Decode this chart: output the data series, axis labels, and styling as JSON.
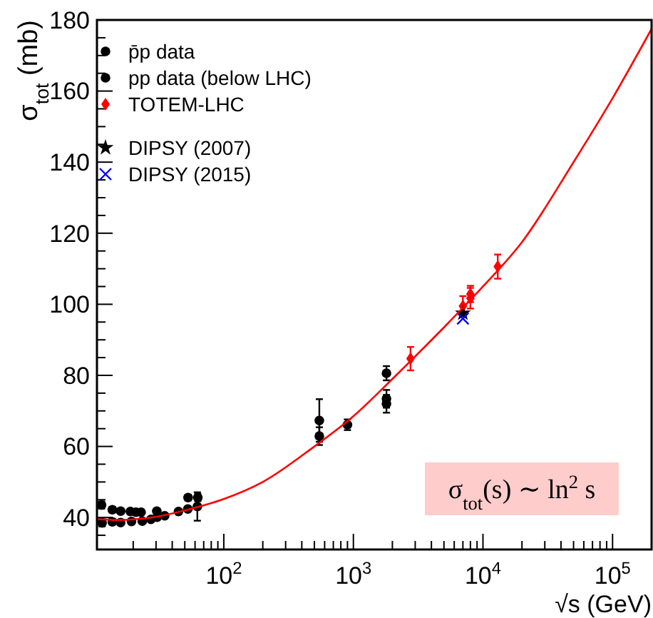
{
  "chart_data": {
    "type": "scatter",
    "xlabel": "√s (GeV)",
    "ylabel": "σ$_{tot}$ (mb)",
    "log": "x",
    "xlim": [
      10.5,
      200000
    ],
    "ylim": [
      31,
      180
    ],
    "xticks": [
      {
        "value": 20,
        "label": null
      },
      {
        "value": 30,
        "label": null
      },
      {
        "value": 40,
        "label": null
      },
      {
        "value": 50,
        "label": null
      },
      {
        "value": 60,
        "label": null
      },
      {
        "value": 70,
        "label": null
      },
      {
        "value": 80,
        "label": null
      },
      {
        "value": 90,
        "label": null
      },
      {
        "value": 100,
        "label": "10$^{2}$"
      },
      {
        "value": 200,
        "label": null
      },
      {
        "value": 300,
        "label": null
      },
      {
        "value": 400,
        "label": null
      },
      {
        "value": 500,
        "label": null
      },
      {
        "value": 600,
        "label": null
      },
      {
        "value": 700,
        "label": null
      },
      {
        "value": 800,
        "label": null
      },
      {
        "value": 900,
        "label": null
      },
      {
        "value": 1000,
        "label": "10$^{3}$"
      },
      {
        "value": 2000,
        "label": null
      },
      {
        "value": 3000,
        "label": null
      },
      {
        "value": 4000,
        "label": null
      },
      {
        "value": 5000,
        "label": null
      },
      {
        "value": 6000,
        "label": null
      },
      {
        "value": 7000,
        "label": null
      },
      {
        "value": 8000,
        "label": null
      },
      {
        "value": 9000,
        "label": null
      },
      {
        "value": 10000,
        "label": "10$^{4}$"
      },
      {
        "value": 20000,
        "label": null
      },
      {
        "value": 30000,
        "label": null
      },
      {
        "value": 40000,
        "label": null
      },
      {
        "value": 50000,
        "label": null
      },
      {
        "value": 60000,
        "label": null
      },
      {
        "value": 70000,
        "label": null
      },
      {
        "value": 80000,
        "label": null
      },
      {
        "value": 90000,
        "label": null
      },
      {
        "value": 100000,
        "label": "10$^{5}$"
      }
    ],
    "yticks": [
      {
        "value": 35,
        "label": null
      },
      40,
      {
        "value": 45,
        "label": null
      },
      {
        "value": 50,
        "label": null
      },
      {
        "value": 55,
        "label": null
      },
      60,
      {
        "value": 65,
        "label": null
      },
      {
        "value": 70,
        "label": null
      },
      {
        "value": 75,
        "label": null
      },
      80,
      {
        "value": 85,
        "label": null
      },
      {
        "value": 90,
        "label": null
      },
      {
        "value": 95,
        "label": null
      },
      100,
      {
        "value": 105,
        "label": null
      },
      {
        "value": 110,
        "label": null
      },
      {
        "value": 115,
        "label": null
      },
      120,
      {
        "value": 125,
        "label": null
      },
      {
        "value": 130,
        "label": null
      },
      {
        "value": 135,
        "label": null
      },
      140,
      {
        "value": 145,
        "label": null
      },
      {
        "value": 150,
        "label": null
      },
      {
        "value": 155,
        "label": null
      },
      160,
      {
        "value": 165,
        "label": null
      },
      {
        "value": 170,
        "label": null
      },
      {
        "value": 175,
        "label": null
      },
      180
    ],
    "legend": "top left",
    "grid": false,
    "annotations": [
      "σ$_{tot}$(s) ∼ ln$^{2}$ s"
    ],
    "series": [
      {
        "name": "p̄p data",
        "color": "#000000",
        "marker": "circle",
        "x": [
          11.4,
          13.8,
          16,
          19,
          21,
          23,
          30.4,
          53,
          63,
          546,
          546,
          900,
          1800,
          1800,
          1800
        ],
        "values": [
          43.5,
          42.2,
          41.8,
          41.7,
          41.5,
          41.5,
          41.8,
          45.6,
          45.6,
          67.3,
          62.9,
          66.1,
          80.6,
          73.4,
          72
        ],
        "errors": [
          1,
          0.8,
          0.7,
          0.6,
          0.6,
          0.6,
          0.6,
          0.8,
          1,
          6,
          2.5,
          1.5,
          2,
          2.5,
          2.5
        ]
      },
      {
        "name": "pp data (below LHC)",
        "color": "#000000",
        "marker": "circle",
        "x": [
          11.5,
          13.8,
          16,
          19.4,
          23.5,
          27.4,
          30.6,
          35,
          44.7,
          52.8,
          62.5
        ],
        "values": [
          38.5,
          38.8,
          38.6,
          38.9,
          39,
          39.5,
          40.1,
          40.5,
          41.7,
          42.4,
          43.1
        ],
        "errors": [
          1,
          0.8,
          0.6,
          0.6,
          0.5,
          0.5,
          0.5,
          0.5,
          0.5,
          0.5,
          4
        ]
      },
      {
        "name": "TOTEM-LHC",
        "color": "#ff0000",
        "marker": "diamond",
        "x": [
          2760,
          7000,
          8000,
          8000,
          13000
        ],
        "values": [
          84.7,
          99.5,
          101.7,
          102.9,
          110.6
        ],
        "errors": [
          3.3,
          2.8,
          2.9,
          2.3,
          3.4
        ]
      },
      {
        "name": "DIPSY (2007)",
        "color": "#000000",
        "marker": "star",
        "x": [
          7000
        ],
        "values": [
          97.5
        ]
      },
      {
        "name": "DIPSY (2015)",
        "color": "#0000ff",
        "marker": "cross",
        "x": [
          7000
        ],
        "values": [
          96
        ]
      },
      {
        "type": "line",
        "color": "#ff0000",
        "marker": "none",
        "x": [
          10.5,
          15,
          20,
          30,
          50,
          100,
          200,
          500,
          1000,
          2000,
          5000,
          10000,
          20000,
          50000,
          100000,
          200000
        ],
        "values": [
          39.6,
          39.3,
          39.5,
          40.2,
          42,
          45.2,
          50,
          60,
          68.5,
          79,
          93.5,
          105,
          117.5,
          140,
          158,
          177.5
        ]
      }
    ]
  }
}
